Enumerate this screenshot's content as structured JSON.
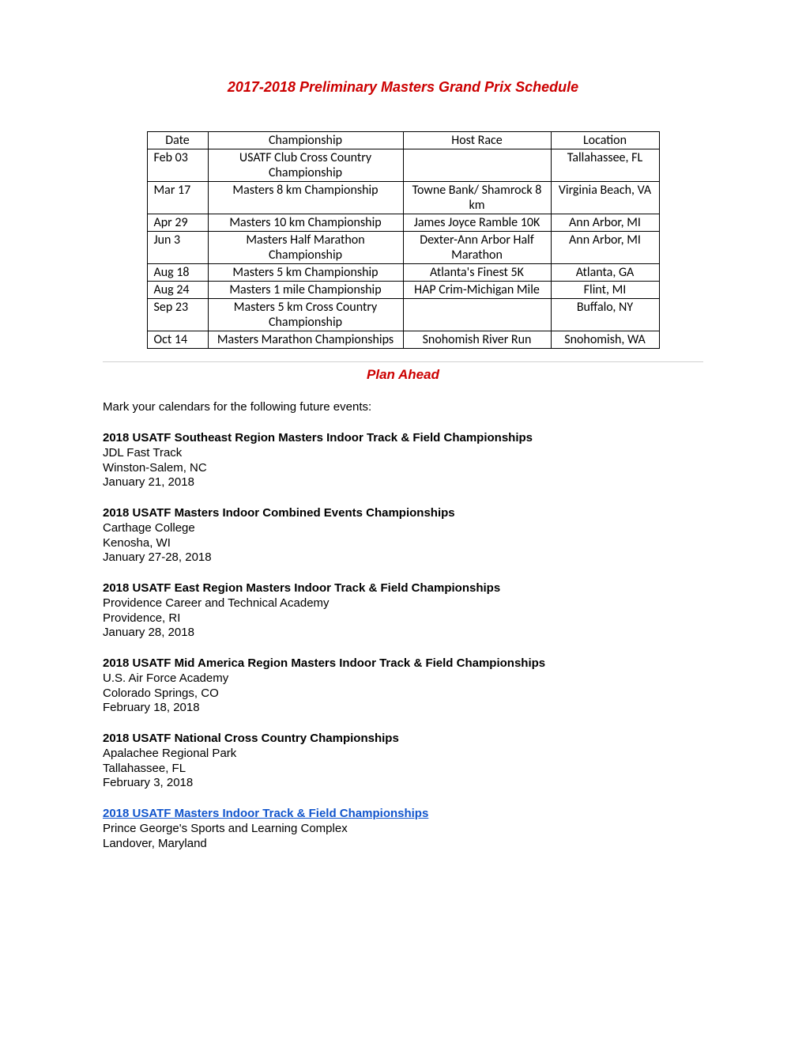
{
  "title": "2017-2018 Preliminary Masters Grand Prix Schedule",
  "table": {
    "headers": [
      "Date",
      "Championship",
      "Host Race",
      "Location"
    ],
    "rows": [
      {
        "date": "Feb 03",
        "championship": "USATF Club Cross Country Championship",
        "host": "",
        "location": "Tallahassee, FL"
      },
      {
        "date": "Mar 17",
        "championship": "Masters 8 km Championship",
        "host": "Towne Bank/ Shamrock 8 km",
        "location": "Virginia Beach, VA"
      },
      {
        "date": "Apr 29",
        "championship": "Masters 10 km Championship",
        "host": "James Joyce Ramble 10K",
        "location": "Ann Arbor, MI"
      },
      {
        "date": "Jun 3",
        "championship": "Masters Half Marathon Championship",
        "host": "Dexter-Ann Arbor Half Marathon",
        "location": "Ann Arbor, MI"
      },
      {
        "date": "Aug 18",
        "championship": "Masters 5 km Championship",
        "host": "Atlanta's Finest 5K",
        "location": "Atlanta, GA"
      },
      {
        "date": "Aug 24",
        "championship": "Masters 1 mile Championship",
        "host": "HAP Crim-Michigan Mile",
        "location": "Flint, MI"
      },
      {
        "date": "Sep 23",
        "championship": "Masters 5 km Cross Country Championship",
        "host": "",
        "location": "Buffalo, NY"
      },
      {
        "date": "Oct 14",
        "championship": "Masters Marathon Championships",
        "host": "Snohomish River Run",
        "location": "Snohomish, WA"
      }
    ]
  },
  "plan_ahead": {
    "heading": "Plan Ahead",
    "intro": "Mark your calendars for the following future events:",
    "events": [
      {
        "title": "2018 USATF Southeast Region Masters Indoor Track & Field Championships",
        "link": false,
        "lines": [
          "JDL Fast Track",
          "Winston-Salem, NC",
          "January 21, 2018"
        ]
      },
      {
        "title": "2018 USATF Masters Indoor Combined Events Championships",
        "link": false,
        "lines": [
          "Carthage College",
          "Kenosha, WI",
          "January 27-28, 2018"
        ]
      },
      {
        "title": "2018 USATF East Region Masters Indoor Track & Field Championships",
        "link": false,
        "lines": [
          "Providence Career and Technical Academy",
          "Providence, RI",
          "January 28, 2018"
        ]
      },
      {
        "title": "2018 USATF Mid America Region Masters Indoor Track & Field Championships",
        "link": false,
        "lines": [
          "U.S. Air Force Academy",
          "Colorado Springs, CO",
          "February 18, 2018"
        ]
      },
      {
        "title": "2018 USATF National Cross Country Championships",
        "link": false,
        "lines": [
          "Apalachee Regional Park",
          "Tallahassee, FL",
          "February 3, 2018"
        ]
      },
      {
        "title": "2018 USATF Masters Indoor Track & Field Championships",
        "link": true,
        "lines": [
          "Prince George's Sports and Learning Complex",
          "Landover, Maryland"
        ]
      }
    ]
  },
  "colors": {
    "heading_red": "#cc0000",
    "link_blue": "#1155cc",
    "text": "#000000",
    "border": "#000000",
    "divider": "#d0d0d0",
    "background": "#ffffff"
  }
}
